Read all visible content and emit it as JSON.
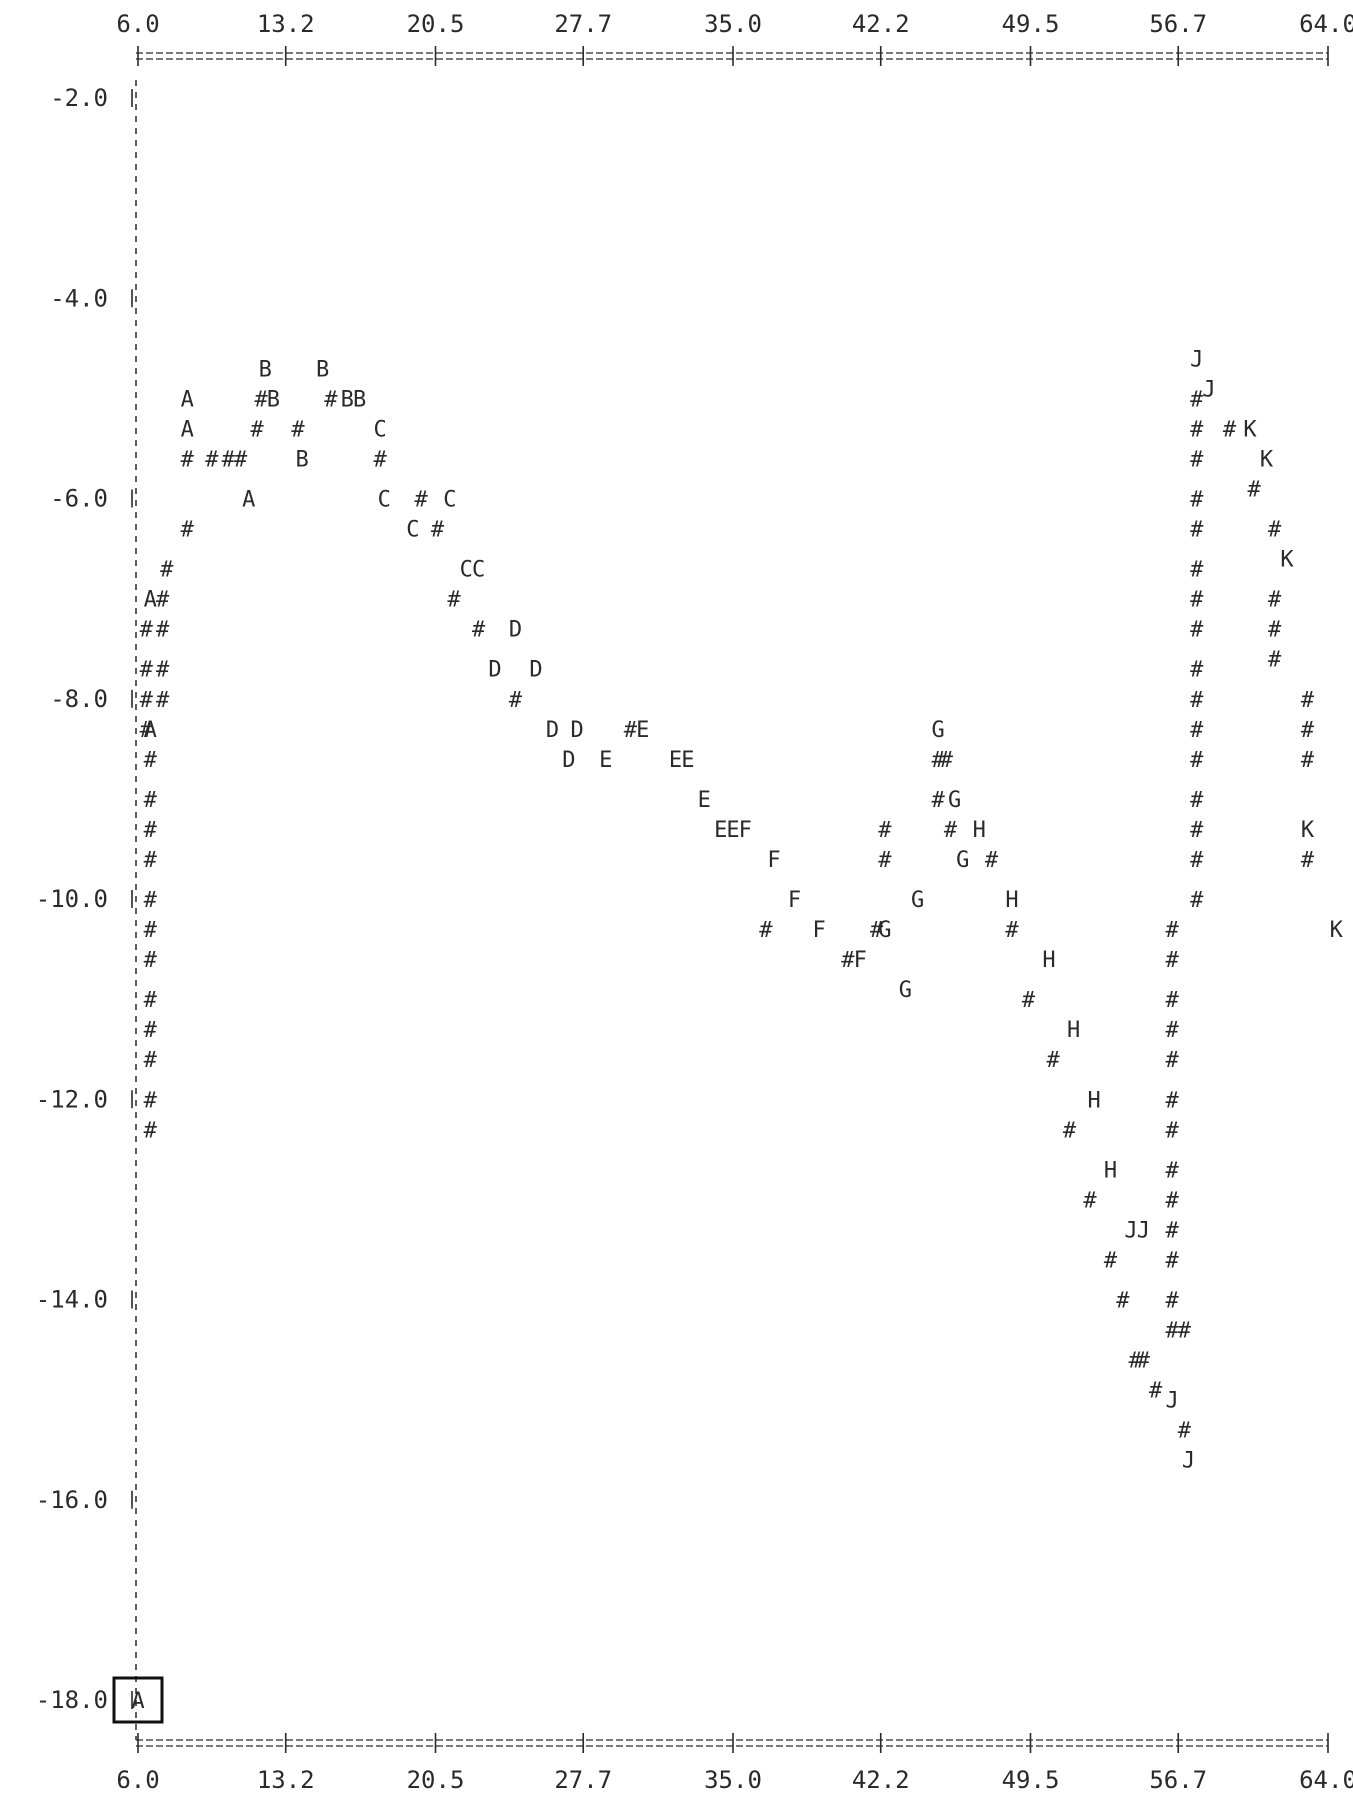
{
  "chart_data": {
    "type": "scatter",
    "title": "",
    "xlabel": "",
    "ylabel": "",
    "xlim": [
      6.0,
      64.0
    ],
    "ylim": [
      -18.0,
      -2.0
    ],
    "x_ticks": [
      "6.0",
      "13.2",
      "20.5",
      "27.7",
      "35.0",
      "42.2",
      "49.5",
      "56.7",
      "64.0"
    ],
    "y_ticks": [
      "-2.0",
      "-4.0",
      "-6.0",
      "-8.0",
      "-10.0",
      "-12.0",
      "-14.0",
      "-16.0",
      "-18.0"
    ],
    "grid": false,
    "ink_color": "#2a2a2a",
    "series": [
      {
        "label": "A",
        "points": [
          [
            8.4,
            -5.0
          ],
          [
            8.4,
            -5.3
          ],
          [
            11.4,
            -6.0
          ],
          [
            6.6,
            -7.0
          ],
          [
            6.6,
            -8.3
          ]
        ]
      },
      {
        "label": "B",
        "points": [
          [
            12.2,
            -4.7
          ],
          [
            15.0,
            -4.7
          ],
          [
            12.6,
            -5.0
          ],
          [
            16.2,
            -5.0
          ],
          [
            16.8,
            -5.0
          ],
          [
            14.0,
            -5.6
          ]
        ]
      },
      {
        "label": "C",
        "points": [
          [
            17.8,
            -5.3
          ],
          [
            18.0,
            -6.0
          ],
          [
            21.2,
            -6.0
          ],
          [
            19.4,
            -6.3
          ],
          [
            22.0,
            -6.7
          ],
          [
            22.6,
            -6.7
          ]
        ]
      },
      {
        "label": "D",
        "points": [
          [
            24.4,
            -7.3
          ],
          [
            23.4,
            -7.7
          ],
          [
            25.4,
            -7.7
          ],
          [
            26.2,
            -8.3
          ],
          [
            27.4,
            -8.3
          ],
          [
            27.0,
            -8.6
          ]
        ]
      },
      {
        "label": "E",
        "points": [
          [
            30.6,
            -8.3
          ],
          [
            28.8,
            -8.6
          ],
          [
            32.2,
            -8.6
          ],
          [
            32.8,
            -8.6
          ],
          [
            33.6,
            -9.0
          ],
          [
            34.4,
            -9.3
          ],
          [
            35.0,
            -9.3
          ]
        ]
      },
      {
        "label": "F",
        "points": [
          [
            35.6,
            -9.3
          ],
          [
            37.0,
            -9.6
          ],
          [
            38.0,
            -10.0
          ],
          [
            39.2,
            -10.3
          ],
          [
            41.2,
            -10.6
          ]
        ]
      },
      {
        "label": "G",
        "points": [
          [
            45.0,
            -8.3
          ],
          [
            45.8,
            -9.0
          ],
          [
            46.2,
            -9.6
          ],
          [
            44.0,
            -10.0
          ],
          [
            42.4,
            -10.3
          ],
          [
            43.4,
            -10.9
          ]
        ]
      },
      {
        "label": "H",
        "points": [
          [
            47.0,
            -9.3
          ],
          [
            48.6,
            -10.0
          ],
          [
            50.4,
            -10.6
          ],
          [
            51.6,
            -11.3
          ],
          [
            52.6,
            -12.0
          ],
          [
            53.4,
            -12.7
          ]
        ]
      },
      {
        "label": "J",
        "points": [
          [
            57.6,
            -4.6
          ],
          [
            58.2,
            -4.9
          ],
          [
            54.4,
            -13.3
          ],
          [
            55.0,
            -13.3
          ],
          [
            56.4,
            -15.0
          ],
          [
            57.2,
            -15.6
          ]
        ]
      },
      {
        "label": "K",
        "points": [
          [
            60.2,
            -5.3
          ],
          [
            61.0,
            -5.6
          ],
          [
            62.0,
            -6.6
          ],
          [
            63.0,
            -9.3
          ],
          [
            64.4,
            -10.3
          ]
        ]
      }
    ],
    "trace_char": "#",
    "trace_points": [
      [
        8.4,
        -5.6
      ],
      [
        8.4,
        -6.3
      ],
      [
        7.4,
        -6.7
      ],
      [
        7.2,
        -7.0
      ],
      [
        6.4,
        -7.3
      ],
      [
        7.2,
        -7.3
      ],
      [
        6.4,
        -7.7
      ],
      [
        7.2,
        -7.7
      ],
      [
        6.4,
        -8.0
      ],
      [
        7.2,
        -8.0
      ],
      [
        6.4,
        -8.3
      ],
      [
        6.6,
        -8.6
      ],
      [
        6.6,
        -9.0
      ],
      [
        6.6,
        -9.3
      ],
      [
        6.6,
        -9.6
      ],
      [
        6.6,
        -10.0
      ],
      [
        6.6,
        -10.3
      ],
      [
        6.6,
        -10.6
      ],
      [
        6.6,
        -11.0
      ],
      [
        6.6,
        -11.3
      ],
      [
        6.6,
        -11.6
      ],
      [
        6.6,
        -12.0
      ],
      [
        6.6,
        -12.3
      ],
      [
        9.6,
        -5.6
      ],
      [
        10.4,
        -5.6
      ],
      [
        11.0,
        -5.6
      ],
      [
        12.0,
        -5.0
      ],
      [
        15.4,
        -5.0
      ],
      [
        11.8,
        -5.3
      ],
      [
        13.8,
        -5.3
      ],
      [
        17.8,
        -5.6
      ],
      [
        19.8,
        -6.0
      ],
      [
        20.6,
        -6.3
      ],
      [
        21.4,
        -7.0
      ],
      [
        22.6,
        -7.3
      ],
      [
        24.4,
        -8.0
      ],
      [
        30.0,
        -8.3
      ],
      [
        36.6,
        -10.3
      ],
      [
        40.6,
        -10.6
      ],
      [
        42.0,
        -10.3
      ],
      [
        42.4,
        -9.6
      ],
      [
        42.4,
        -9.3
      ],
      [
        45.0,
        -8.6
      ],
      [
        45.4,
        -8.6
      ],
      [
        45.0,
        -9.0
      ],
      [
        45.6,
        -9.3
      ],
      [
        47.6,
        -9.6
      ],
      [
        48.6,
        -10.3
      ],
      [
        49.4,
        -11.0
      ],
      [
        50.6,
        -11.6
      ],
      [
        51.4,
        -12.3
      ],
      [
        52.4,
        -13.0
      ],
      [
        53.4,
        -13.6
      ],
      [
        54.0,
        -14.0
      ],
      [
        54.6,
        -14.6
      ],
      [
        55.0,
        -14.6
      ],
      [
        55.6,
        -14.9
      ],
      [
        57.0,
        -15.3
      ],
      [
        56.4,
        -10.3
      ],
      [
        56.4,
        -10.6
      ],
      [
        56.4,
        -11.0
      ],
      [
        56.4,
        -11.3
      ],
      [
        56.4,
        -11.6
      ],
      [
        56.4,
        -12.0
      ],
      [
        56.4,
        -12.3
      ],
      [
        56.4,
        -12.7
      ],
      [
        56.4,
        -13.0
      ],
      [
        56.4,
        -13.3
      ],
      [
        56.4,
        -13.6
      ],
      [
        56.4,
        -14.0
      ],
      [
        56.4,
        -14.3
      ],
      [
        57.0,
        -14.3
      ],
      [
        57.6,
        -5.0
      ],
      [
        57.6,
        -5.3
      ],
      [
        57.6,
        -5.6
      ],
      [
        57.6,
        -6.0
      ],
      [
        57.6,
        -6.3
      ],
      [
        57.6,
        -6.7
      ],
      [
        57.6,
        -7.0
      ],
      [
        57.6,
        -7.3
      ],
      [
        57.6,
        -7.7
      ],
      [
        57.6,
        -8.0
      ],
      [
        57.6,
        -8.3
      ],
      [
        57.6,
        -8.6
      ],
      [
        57.6,
        -9.0
      ],
      [
        57.6,
        -9.3
      ],
      [
        57.6,
        -9.6
      ],
      [
        57.6,
        -10.0
      ],
      [
        59.2,
        -5.3
      ],
      [
        60.4,
        -5.9
      ],
      [
        61.4,
        -6.3
      ],
      [
        61.4,
        -7.0
      ],
      [
        61.4,
        -7.3
      ],
      [
        61.4,
        -7.6
      ],
      [
        63.0,
        -8.0
      ],
      [
        63.0,
        -8.3
      ],
      [
        63.0,
        -8.6
      ],
      [
        63.0,
        -9.6
      ]
    ],
    "corner_label": "A"
  }
}
